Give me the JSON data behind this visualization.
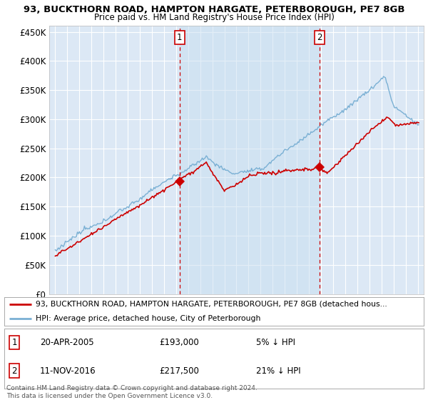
{
  "title1": "93, BUCKTHORN ROAD, HAMPTON HARGATE, PETERBOROUGH, PE7 8GB",
  "title2": "Price paid vs. HM Land Registry's House Price Index (HPI)",
  "ylabel_ticks": [
    "£0",
    "£50K",
    "£100K",
    "£150K",
    "£200K",
    "£250K",
    "£300K",
    "£350K",
    "£400K",
    "£450K"
  ],
  "ytick_values": [
    0,
    50000,
    100000,
    150000,
    200000,
    250000,
    300000,
    350000,
    400000,
    450000
  ],
  "ylim": [
    0,
    460000
  ],
  "xlim_start": 1994.5,
  "xlim_end": 2025.5,
  "sale1_x": 2005.3,
  "sale1_y": 193000,
  "sale2_x": 2016.87,
  "sale2_y": 217500,
  "legend_line1": "93, BUCKTHORN ROAD, HAMPTON HARGATE, PETERBOROUGH, PE7 8GB (detached hous...",
  "legend_line2": "HPI: Average price, detached house, City of Peterborough",
  "annotation1_date": "20-APR-2005",
  "annotation1_price": "£193,000",
  "annotation1_hpi": "5% ↓ HPI",
  "annotation2_date": "11-NOV-2016",
  "annotation2_price": "£217,500",
  "annotation2_hpi": "21% ↓ HPI",
  "footnote": "Contains HM Land Registry data © Crown copyright and database right 2024.\nThis data is licensed under the Open Government Licence v3.0.",
  "line_color_red": "#cc0000",
  "line_color_blue": "#7ab0d4",
  "highlight_color": "#dce8f5",
  "background_color": "#dce8f5",
  "grid_color": "#ffffff",
  "title1_fontsize": 9.5,
  "title2_fontsize": 8.5
}
